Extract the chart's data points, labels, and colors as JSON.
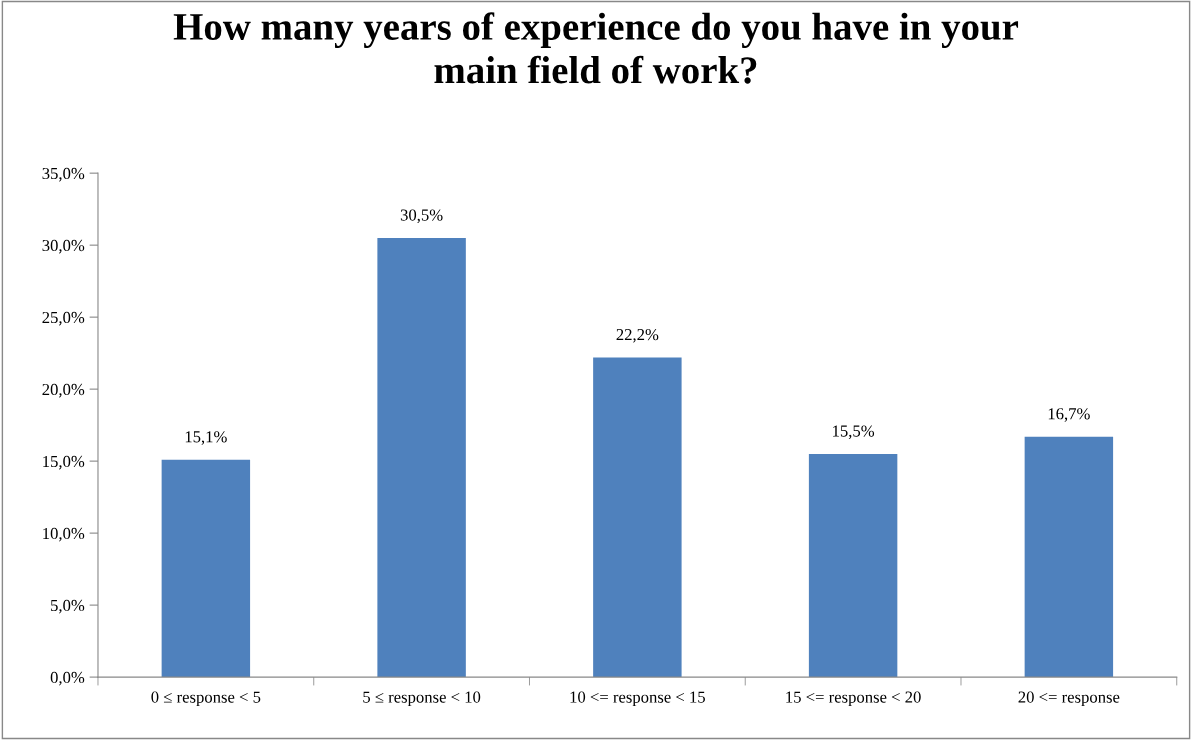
{
  "chart_data": {
    "type": "bar",
    "title": "How many years of experience do you have in your\nmain field of work?",
    "categories": [
      "0 ≤ response < 5",
      "5 ≤ response < 10",
      "10 <= response < 15",
      "15 <= response < 20",
      "20 <= response"
    ],
    "values": [
      15.1,
      30.5,
      22.2,
      15.5,
      16.7
    ],
    "value_labels": [
      "15,1%",
      "30,5%",
      "22,2%",
      "15,5%",
      "16,7%"
    ],
    "color": "#4f81bd",
    "ylim": [
      0,
      35
    ],
    "yticks": [
      {
        "value": 0,
        "label": "0,0%"
      },
      {
        "value": 5,
        "label": "5,0%"
      },
      {
        "value": 10,
        "label": "10,0%"
      },
      {
        "value": 15,
        "label": "15,0%"
      },
      {
        "value": 20,
        "label": "20,0%"
      },
      {
        "value": 25,
        "label": "25,0%"
      },
      {
        "value": 30,
        "label": "30,0%"
      },
      {
        "value": 35,
        "label": "35,0%"
      }
    ],
    "grid": false,
    "legend": false
  }
}
